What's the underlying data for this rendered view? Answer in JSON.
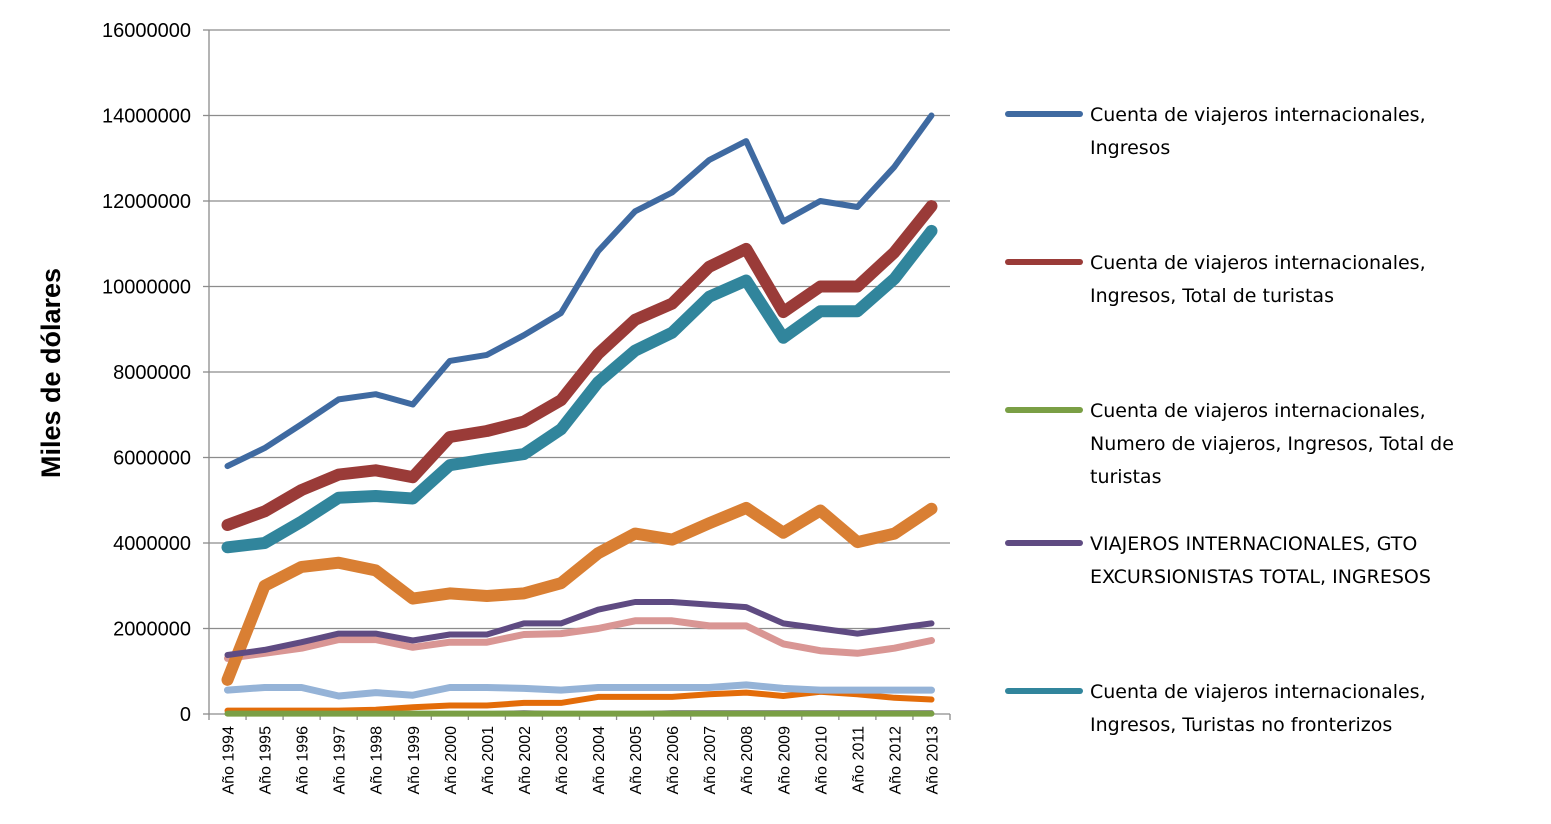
{
  "chart_data": {
    "type": "line",
    "ylabel": "Miles de dólares",
    "xlabel": "",
    "ylim": [
      0,
      16000000
    ],
    "yticks": [
      0,
      2000000,
      4000000,
      6000000,
      8000000,
      10000000,
      12000000,
      14000000,
      16000000
    ],
    "grid": "horizontal",
    "legend_position": "right",
    "categories": [
      "Año 1994",
      "Año 1995",
      "Año 1996",
      "Año 1997",
      "Año 1998",
      "Año 1999",
      "Año 2000",
      "Año 2001",
      "Año 2002",
      "Año 2003",
      "Año 2004",
      "Año 2005",
      "Año 2006",
      "Año 2007",
      "Año 2008",
      "Año 2009",
      "Año 2010",
      "Año 2011",
      "Año 2012",
      "Año 2013"
    ],
    "series": [
      {
        "key": "s_extra1",
        "color": "#e36c09",
        "width": 6,
        "values": [
          80000,
          80000,
          80000,
          80000,
          100000,
          160000,
          200000,
          200000,
          260000,
          260000,
          400000,
          400000,
          400000,
          460000,
          500000,
          420000,
          520000,
          460000,
          380000,
          340000
        ]
      },
      {
        "key": "s_extra2",
        "color": "#95b3d7",
        "width": 7,
        "values": [
          560000,
          620000,
          620000,
          420000,
          500000,
          440000,
          620000,
          620000,
          600000,
          560000,
          620000,
          620000,
          620000,
          620000,
          680000,
          600000,
          560000,
          560000,
          560000,
          560000
        ]
      },
      {
        "key": "s_extra3",
        "color": "#d99694",
        "width": 7,
        "values": [
          1300000,
          1420000,
          1540000,
          1740000,
          1740000,
          1560000,
          1680000,
          1680000,
          1860000,
          1880000,
          2000000,
          2180000,
          2180000,
          2060000,
          2060000,
          1640000,
          1480000,
          1420000,
          1540000,
          1720000
        ]
      },
      {
        "key": "s_extra4",
        "color": "#604a7b",
        "width": 4,
        "values": [
          20000,
          20000,
          20000,
          20000,
          20000,
          20000,
          20000,
          20000,
          40000,
          20000,
          20000,
          20000,
          40000,
          40000,
          40000,
          40000,
          40000,
          40000,
          40000,
          40000
        ]
      },
      {
        "key": "s_extra5",
        "color": "#d97f33",
        "width": 12,
        "values": [
          800000,
          3000000,
          3440000,
          3540000,
          3360000,
          2700000,
          2820000,
          2760000,
          2820000,
          3060000,
          3760000,
          4220000,
          4080000,
          4460000,
          4820000,
          4240000,
          4760000,
          4020000,
          4220000,
          4800000
        ]
      },
      {
        "key": "s1",
        "color": "#3f6aa1",
        "width": 6,
        "name": "Cuenta de viajeros internacionales, Ingresos",
        "name_lines": [
          "Cuenta de viajeros internacionales,",
          "Ingresos"
        ],
        "values": [
          5800000,
          6220000,
          6780000,
          7360000,
          7480000,
          7240000,
          8260000,
          8400000,
          8860000,
          9380000,
          10820000,
          11760000,
          12200000,
          12960000,
          13400000,
          11520000,
          12000000,
          11860000,
          12800000,
          14000000
        ]
      },
      {
        "key": "s2",
        "color": "#9a3b38",
        "width": 12,
        "name": "Cuenta de viajeros internacionales, Ingresos, Total de turistas",
        "name_lines": [
          "Cuenta de viajeros internacionales,",
          "Ingresos, Total de turistas"
        ],
        "values": [
          4420000,
          4740000,
          5240000,
          5600000,
          5700000,
          5540000,
          6480000,
          6620000,
          6840000,
          7340000,
          8420000,
          9220000,
          9600000,
          10460000,
          10880000,
          9400000,
          10000000,
          10000000,
          10800000,
          11880000
        ]
      },
      {
        "key": "s5",
        "color": "#31859c",
        "width": 12,
        "name": "Cuenta de viajeros internacionales, Ingresos, Turistas no fronterizos",
        "name_lines": [
          "Cuenta de viajeros internacionales,",
          "Ingresos, Turistas no fronterizos"
        ],
        "values": [
          3900000,
          4000000,
          4500000,
          5060000,
          5100000,
          5040000,
          5820000,
          5960000,
          6080000,
          6660000,
          7760000,
          8500000,
          8920000,
          9760000,
          10140000,
          8800000,
          9420000,
          9420000,
          10180000,
          11300000
        ]
      },
      {
        "key": "s4",
        "color": "#5f4b82",
        "width": 6,
        "name": "VIAJEROS INTERNACIONALES,  GTO EXCURSIONISTAS TOTAL, INGRESOS",
        "name_lines": [
          "VIAJEROS INTERNACIONALES,  GTO",
          "EXCURSIONISTAS TOTAL, INGRESOS"
        ],
        "values": [
          1380000,
          1500000,
          1680000,
          1880000,
          1880000,
          1720000,
          1860000,
          1860000,
          2120000,
          2120000,
          2440000,
          2620000,
          2620000,
          2560000,
          2500000,
          2120000,
          2000000,
          1880000,
          2000000,
          2120000
        ]
      },
      {
        "key": "s3",
        "color": "#7a9f45",
        "width": 6,
        "name": "Cuenta de viajeros internacionales, Numero de viajeros, Ingresos, Total de turistas",
        "name_lines": [
          "Cuenta de viajeros internacionales,",
          "Numero de viajeros, Ingresos, Total de",
          "turistas"
        ],
        "values": [
          10000,
          10000,
          10000,
          10000,
          10000,
          10000,
          10000,
          10000,
          10000,
          10000,
          10000,
          10000,
          10000,
          10000,
          10000,
          10000,
          10000,
          10000,
          10000,
          10000
        ]
      }
    ],
    "legend": [
      {
        "key": "s1",
        "color": "#3f6aa1",
        "lines": [
          "Cuenta de viajeros internacionales,",
          "Ingresos"
        ]
      },
      {
        "key": "s2",
        "color": "#9a3b38",
        "lines": [
          "Cuenta de viajeros internacionales,",
          "Ingresos, Total de turistas"
        ]
      },
      {
        "key": "s3",
        "color": "#7a9f45",
        "lines": [
          "Cuenta de viajeros internacionales,",
          "Numero de viajeros, Ingresos, Total de",
          "turistas"
        ]
      },
      {
        "key": "s4",
        "color": "#5f4b82",
        "lines": [
          "VIAJEROS INTERNACIONALES,  GTO",
          "EXCURSIONISTAS TOTAL, INGRESOS"
        ]
      },
      {
        "key": "s5",
        "color": "#31859c",
        "lines": [
          "Cuenta de viajeros internacionales,",
          "Ingresos, Turistas no fronterizos"
        ]
      }
    ]
  }
}
